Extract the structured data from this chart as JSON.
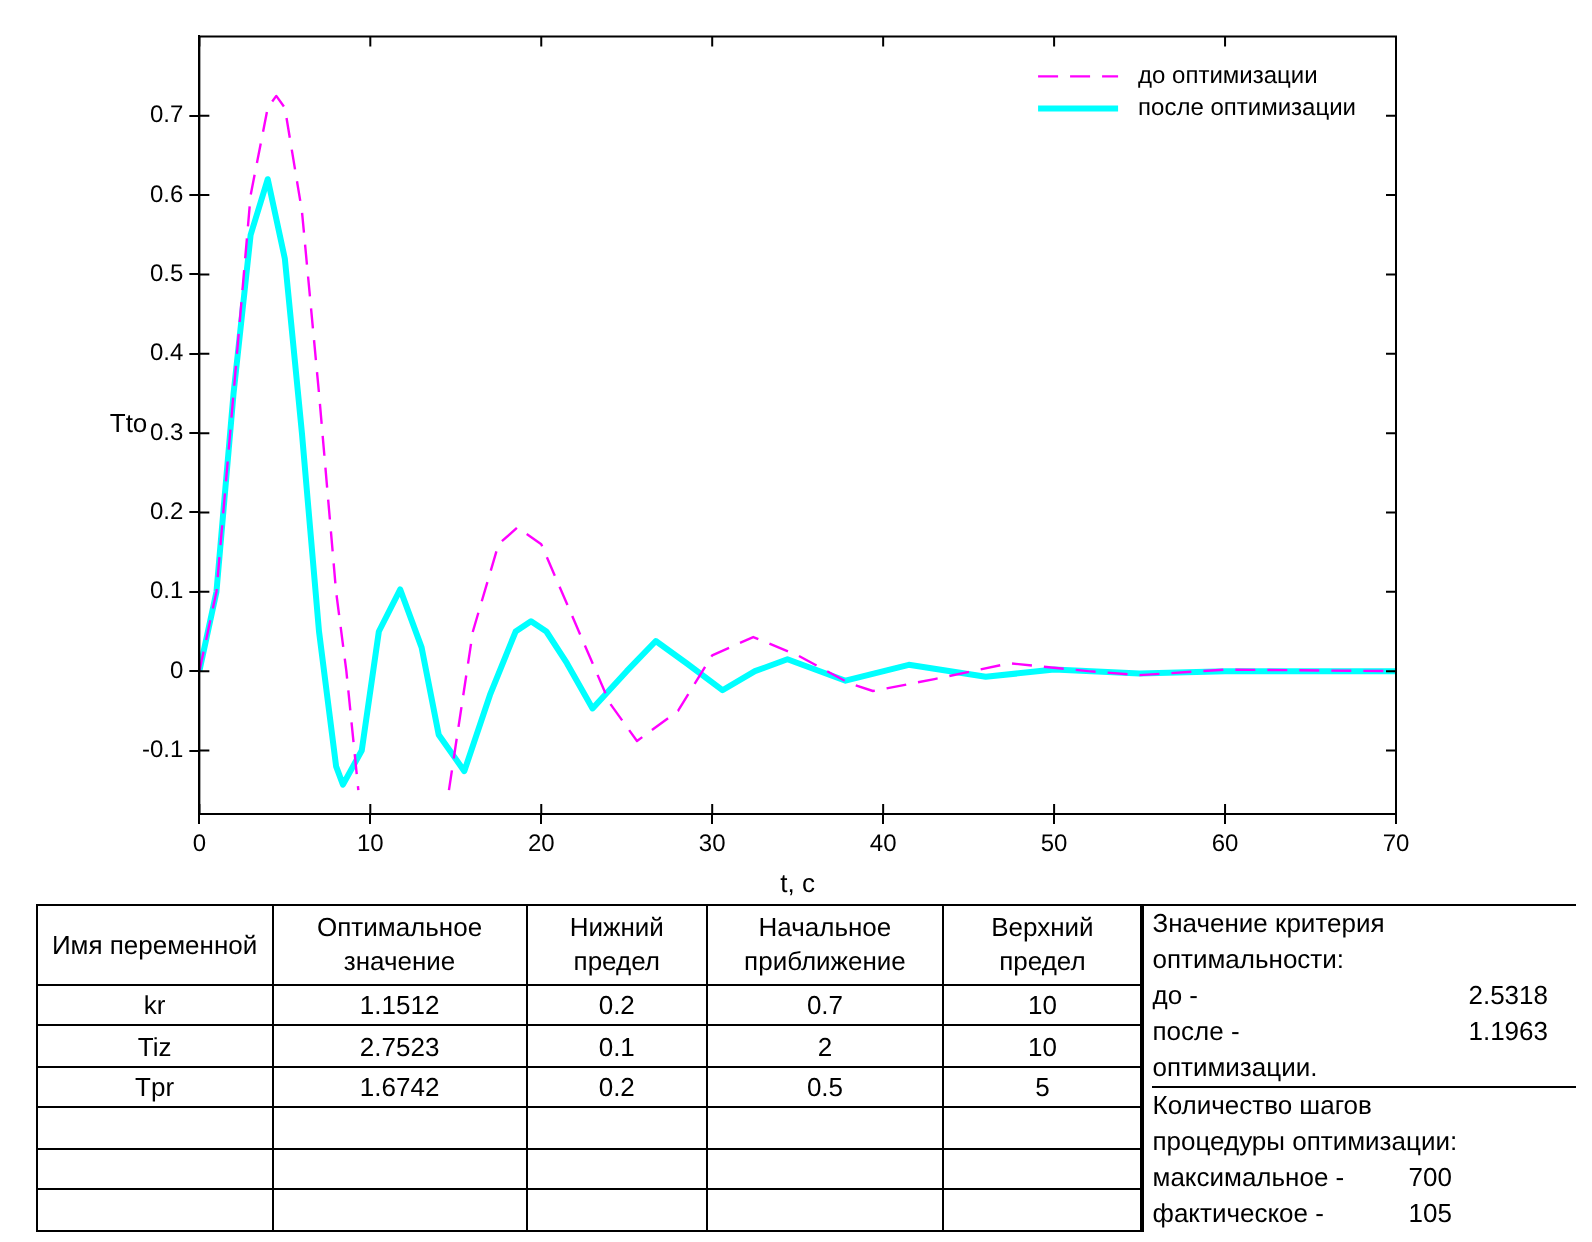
{
  "chart_data": {
    "type": "line",
    "xlabel": "t, с",
    "ylabel": "Tto",
    "xlim": [
      0,
      70
    ],
    "ylim": [
      -0.18,
      0.8
    ],
    "xticks": [
      0,
      10,
      20,
      30,
      40,
      50,
      60,
      70
    ],
    "yticks": [
      -0.1,
      0,
      0.1,
      0.2,
      0.3,
      0.4,
      0.5,
      0.6,
      0.7
    ],
    "legend": "top right",
    "marker": "none",
    "series": [
      {
        "name": "до оптимизации",
        "color": "#ff00ff",
        "line_style": "dashed",
        "x": [
          0,
          1,
          2,
          3,
          4,
          4.5,
          5,
          6,
          7,
          8,
          8.6,
          9.3,
          11,
          14.6,
          16,
          17.5,
          18.6,
          20,
          22,
          24,
          25.6,
          28,
          30,
          32.4,
          35,
          38,
          39.4,
          43,
          47.4,
          52,
          55,
          60,
          70
        ],
        "values": [
          0,
          0.1,
          0.35,
          0.6,
          0.71,
          0.725,
          0.71,
          0.58,
          0.35,
          0.1,
          0,
          -0.15,
          null,
          -0.15,
          0.05,
          0.16,
          0.181,
          0.16,
          0.06,
          -0.04,
          -0.088,
          -0.05,
          0.02,
          0.043,
          0.02,
          -0.015,
          -0.025,
          -0.01,
          0.01,
          0,
          -0.005,
          0.002,
          0
        ]
      },
      {
        "name": "после оптимизации",
        "color": "#00ffff",
        "line_style": "solid",
        "x": [
          0,
          1,
          2,
          3,
          4,
          5,
          6,
          7,
          8,
          8.4,
          9.5,
          10.5,
          11.75,
          13,
          14,
          15.5,
          17,
          18.5,
          19.4,
          20.3,
          21.5,
          23,
          25,
          26.7,
          28.5,
          30.6,
          32.5,
          34.4,
          37.8,
          41.5,
          46,
          50,
          55,
          60,
          70
        ],
        "values": [
          0,
          0.1,
          0.35,
          0.55,
          0.62,
          0.52,
          0.3,
          0.05,
          -0.12,
          -0.143,
          -0.1,
          0.05,
          0.103,
          0.03,
          -0.08,
          -0.126,
          -0.03,
          0.05,
          0.063,
          0.05,
          0.01,
          -0.047,
          0,
          0.038,
          0.01,
          -0.024,
          0,
          0.015,
          -0.012,
          0.008,
          -0.007,
          0.002,
          -0.003,
          0,
          0
        ]
      }
    ],
    "annotations": [
      "Имя переменной",
      "Оптимальное значение",
      "Нижний предел",
      "Начальное приближение",
      "Верхний предел",
      "kr",
      "1.1512",
      "0.2",
      "0.7",
      "10",
      "Tiz",
      "2.7523",
      "0.1",
      "2",
      "10",
      "Tpr",
      "1.6742",
      "0.2",
      "0.5",
      "5",
      "Значение критерия",
      "оптимальности:",
      "до -",
      "2.5318",
      "после -",
      "1.1963",
      "оптимизации.",
      "Количество шагов",
      "процедуры оптимизации:",
      "максимальное -",
      "700",
      "фактическое -",
      "105"
    ]
  }
}
